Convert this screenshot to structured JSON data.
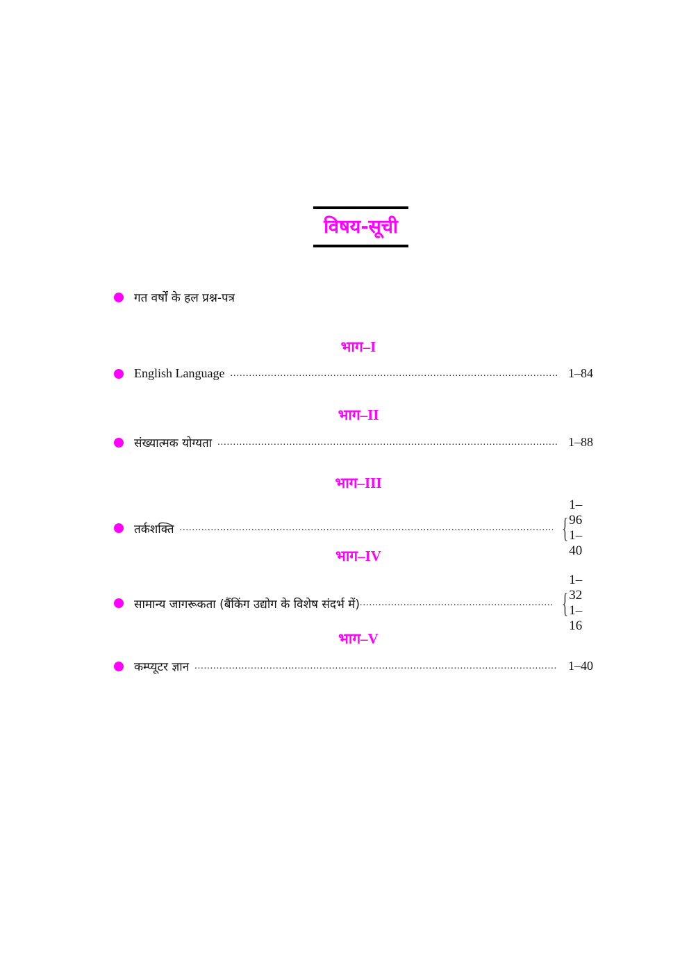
{
  "title": "विषय-सूची",
  "intro": "गत वर्षों के हल प्रश्न-पत्र",
  "accent_color": "#ff00ff",
  "sections": [
    {
      "part": "भाग–I",
      "entry": "English Language",
      "pages": [
        "1–84"
      ]
    },
    {
      "part": "भाग–II",
      "entry": "संख्यात्मक योग्यता",
      "pages": [
        "1–88"
      ]
    },
    {
      "part": "भाग–III",
      "entry": "तर्कशक्ति",
      "pages": [
        "1–96",
        "1–40"
      ]
    },
    {
      "part": "भाग–IV",
      "entry": "सामान्य जागरूकता (बैंकिंग उद्योग के विशेष संदर्भ में)",
      "pages": [
        "1–32",
        "1–16"
      ]
    },
    {
      "part": "भाग–V",
      "entry": "कम्प्यूटर ज्ञान",
      "pages": [
        "1–40"
      ]
    }
  ]
}
